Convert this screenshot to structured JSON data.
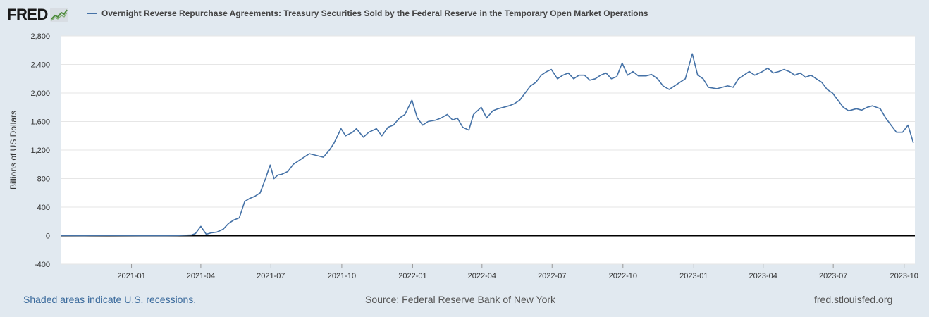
{
  "header": {
    "logo_text": "FRED",
    "logo_icon": "trend-chart-icon"
  },
  "colors": {
    "background": "#e1e9f0",
    "plot_background": "#ffffff",
    "series": "#4572a7",
    "zero_line": "#000000",
    "grid": "#e6e6e6"
  },
  "footer": {
    "recessions_note": "Shaded areas indicate U.S. recessions.",
    "source": "Source: Federal Reserve Bank of New York",
    "site": "fred.stlouisfed.org"
  },
  "chart_data": {
    "type": "line",
    "title": "",
    "xlabel": "",
    "ylabel": "Billions of US Dollars",
    "ylim": [
      -400,
      2800
    ],
    "xlim": [
      "2020-10-01",
      "2023-10-15"
    ],
    "grid": true,
    "legend_placement": "top-left",
    "y_ticks": [
      -400,
      0,
      400,
      800,
      1200,
      1600,
      2000,
      2400,
      2800
    ],
    "y_tick_labels": [
      "-400",
      "0",
      "400",
      "800",
      "1,200",
      "1,600",
      "2,000",
      "2,400",
      "2,800"
    ],
    "x_ticks": [
      "2021-01-01",
      "2021-04-01",
      "2021-07-01",
      "2021-10-01",
      "2022-01-01",
      "2022-04-01",
      "2022-07-01",
      "2022-10-01",
      "2023-01-01",
      "2023-04-01",
      "2023-07-01",
      "2023-10-01"
    ],
    "x_tick_labels": [
      "2021-01",
      "2021-04",
      "2021-07",
      "2021-10",
      "2022-01",
      "2022-04",
      "2022-07",
      "2022-10",
      "2023-01",
      "2023-04",
      "2023-07",
      "2023-10"
    ],
    "series": [
      {
        "name": "Overnight Reverse Repurchase Agreements: Treasury Securities Sold by the Federal Reserve in the Temporary Open Market Operations",
        "x": [
          "2020-10-01",
          "2020-11-01",
          "2020-12-01",
          "2021-01-15",
          "2021-02-15",
          "2021-03-01",
          "2021-03-20",
          "2021-03-25",
          "2021-04-01",
          "2021-04-08",
          "2021-04-15",
          "2021-04-22",
          "2021-04-30",
          "2021-05-07",
          "2021-05-14",
          "2021-05-21",
          "2021-05-28",
          "2021-06-03",
          "2021-06-10",
          "2021-06-17",
          "2021-06-24",
          "2021-06-30",
          "2021-07-05",
          "2021-07-10",
          "2021-07-15",
          "2021-07-23",
          "2021-07-30",
          "2021-08-06",
          "2021-08-13",
          "2021-08-20",
          "2021-08-31",
          "2021-09-07",
          "2021-09-15",
          "2021-09-21",
          "2021-09-30",
          "2021-10-06",
          "2021-10-15",
          "2021-10-20",
          "2021-10-29",
          "2021-11-05",
          "2021-11-15",
          "2021-11-22",
          "2021-11-30",
          "2021-12-07",
          "2021-12-15",
          "2021-12-22",
          "2021-12-31",
          "2022-01-07",
          "2022-01-14",
          "2022-01-21",
          "2022-01-31",
          "2022-02-07",
          "2022-02-15",
          "2022-02-22",
          "2022-02-28",
          "2022-03-07",
          "2022-03-15",
          "2022-03-21",
          "2022-03-31",
          "2022-04-07",
          "2022-04-15",
          "2022-04-22",
          "2022-04-29",
          "2022-05-06",
          "2022-05-13",
          "2022-05-20",
          "2022-05-27",
          "2022-06-03",
          "2022-06-10",
          "2022-06-17",
          "2022-06-24",
          "2022-06-30",
          "2022-07-08",
          "2022-07-15",
          "2022-07-22",
          "2022-07-29",
          "2022-08-05",
          "2022-08-12",
          "2022-08-19",
          "2022-08-26",
          "2022-09-02",
          "2022-09-09",
          "2022-09-16",
          "2022-09-23",
          "2022-09-30",
          "2022-10-07",
          "2022-10-14",
          "2022-10-21",
          "2022-10-31",
          "2022-11-07",
          "2022-11-15",
          "2022-11-22",
          "2022-11-30",
          "2022-12-07",
          "2022-12-14",
          "2022-12-21",
          "2022-12-30",
          "2023-01-06",
          "2023-01-13",
          "2023-01-20",
          "2023-01-31",
          "2023-02-07",
          "2023-02-14",
          "2023-02-21",
          "2023-02-28",
          "2023-03-07",
          "2023-03-14",
          "2023-03-21",
          "2023-03-31",
          "2023-04-07",
          "2023-04-14",
          "2023-04-21",
          "2023-04-28",
          "2023-05-05",
          "2023-05-12",
          "2023-05-19",
          "2023-05-26",
          "2023-06-02",
          "2023-06-09",
          "2023-06-16",
          "2023-06-23",
          "2023-06-30",
          "2023-07-07",
          "2023-07-14",
          "2023-07-21",
          "2023-07-31",
          "2023-08-07",
          "2023-08-14",
          "2023-08-21",
          "2023-08-31",
          "2023-09-07",
          "2023-09-14",
          "2023-09-21",
          "2023-09-29",
          "2023-10-06",
          "2023-10-13"
        ],
        "y": [
          2,
          1,
          3,
          1,
          0,
          2,
          10,
          30,
          130,
          20,
          40,
          50,
          90,
          170,
          220,
          250,
          480,
          520,
          550,
          600,
          800,
          990,
          800,
          850,
          860,
          900,
          1000,
          1050,
          1100,
          1150,
          1120,
          1100,
          1200,
          1300,
          1500,
          1400,
          1450,
          1500,
          1380,
          1450,
          1500,
          1400,
          1520,
          1550,
          1650,
          1700,
          1900,
          1650,
          1550,
          1600,
          1620,
          1650,
          1700,
          1620,
          1650,
          1520,
          1480,
          1700,
          1800,
          1650,
          1750,
          1780,
          1800,
          1820,
          1850,
          1900,
          2000,
          2100,
          2150,
          2250,
          2300,
          2330,
          2200,
          2250,
          2280,
          2200,
          2250,
          2250,
          2180,
          2200,
          2250,
          2280,
          2200,
          2230,
          2420,
          2250,
          2300,
          2240,
          2240,
          2260,
          2200,
          2100,
          2050,
          2100,
          2150,
          2200,
          2550,
          2250,
          2200,
          2080,
          2060,
          2080,
          2100,
          2080,
          2200,
          2250,
          2300,
          2250,
          2300,
          2350,
          2280,
          2300,
          2330,
          2300,
          2250,
          2280,
          2220,
          2250,
          2200,
          2150,
          2050,
          2000,
          1900,
          1800,
          1750,
          1780,
          1760,
          1800,
          1820,
          1780,
          1650,
          1550,
          1450,
          1450,
          1550,
          1300
        ]
      }
    ]
  }
}
